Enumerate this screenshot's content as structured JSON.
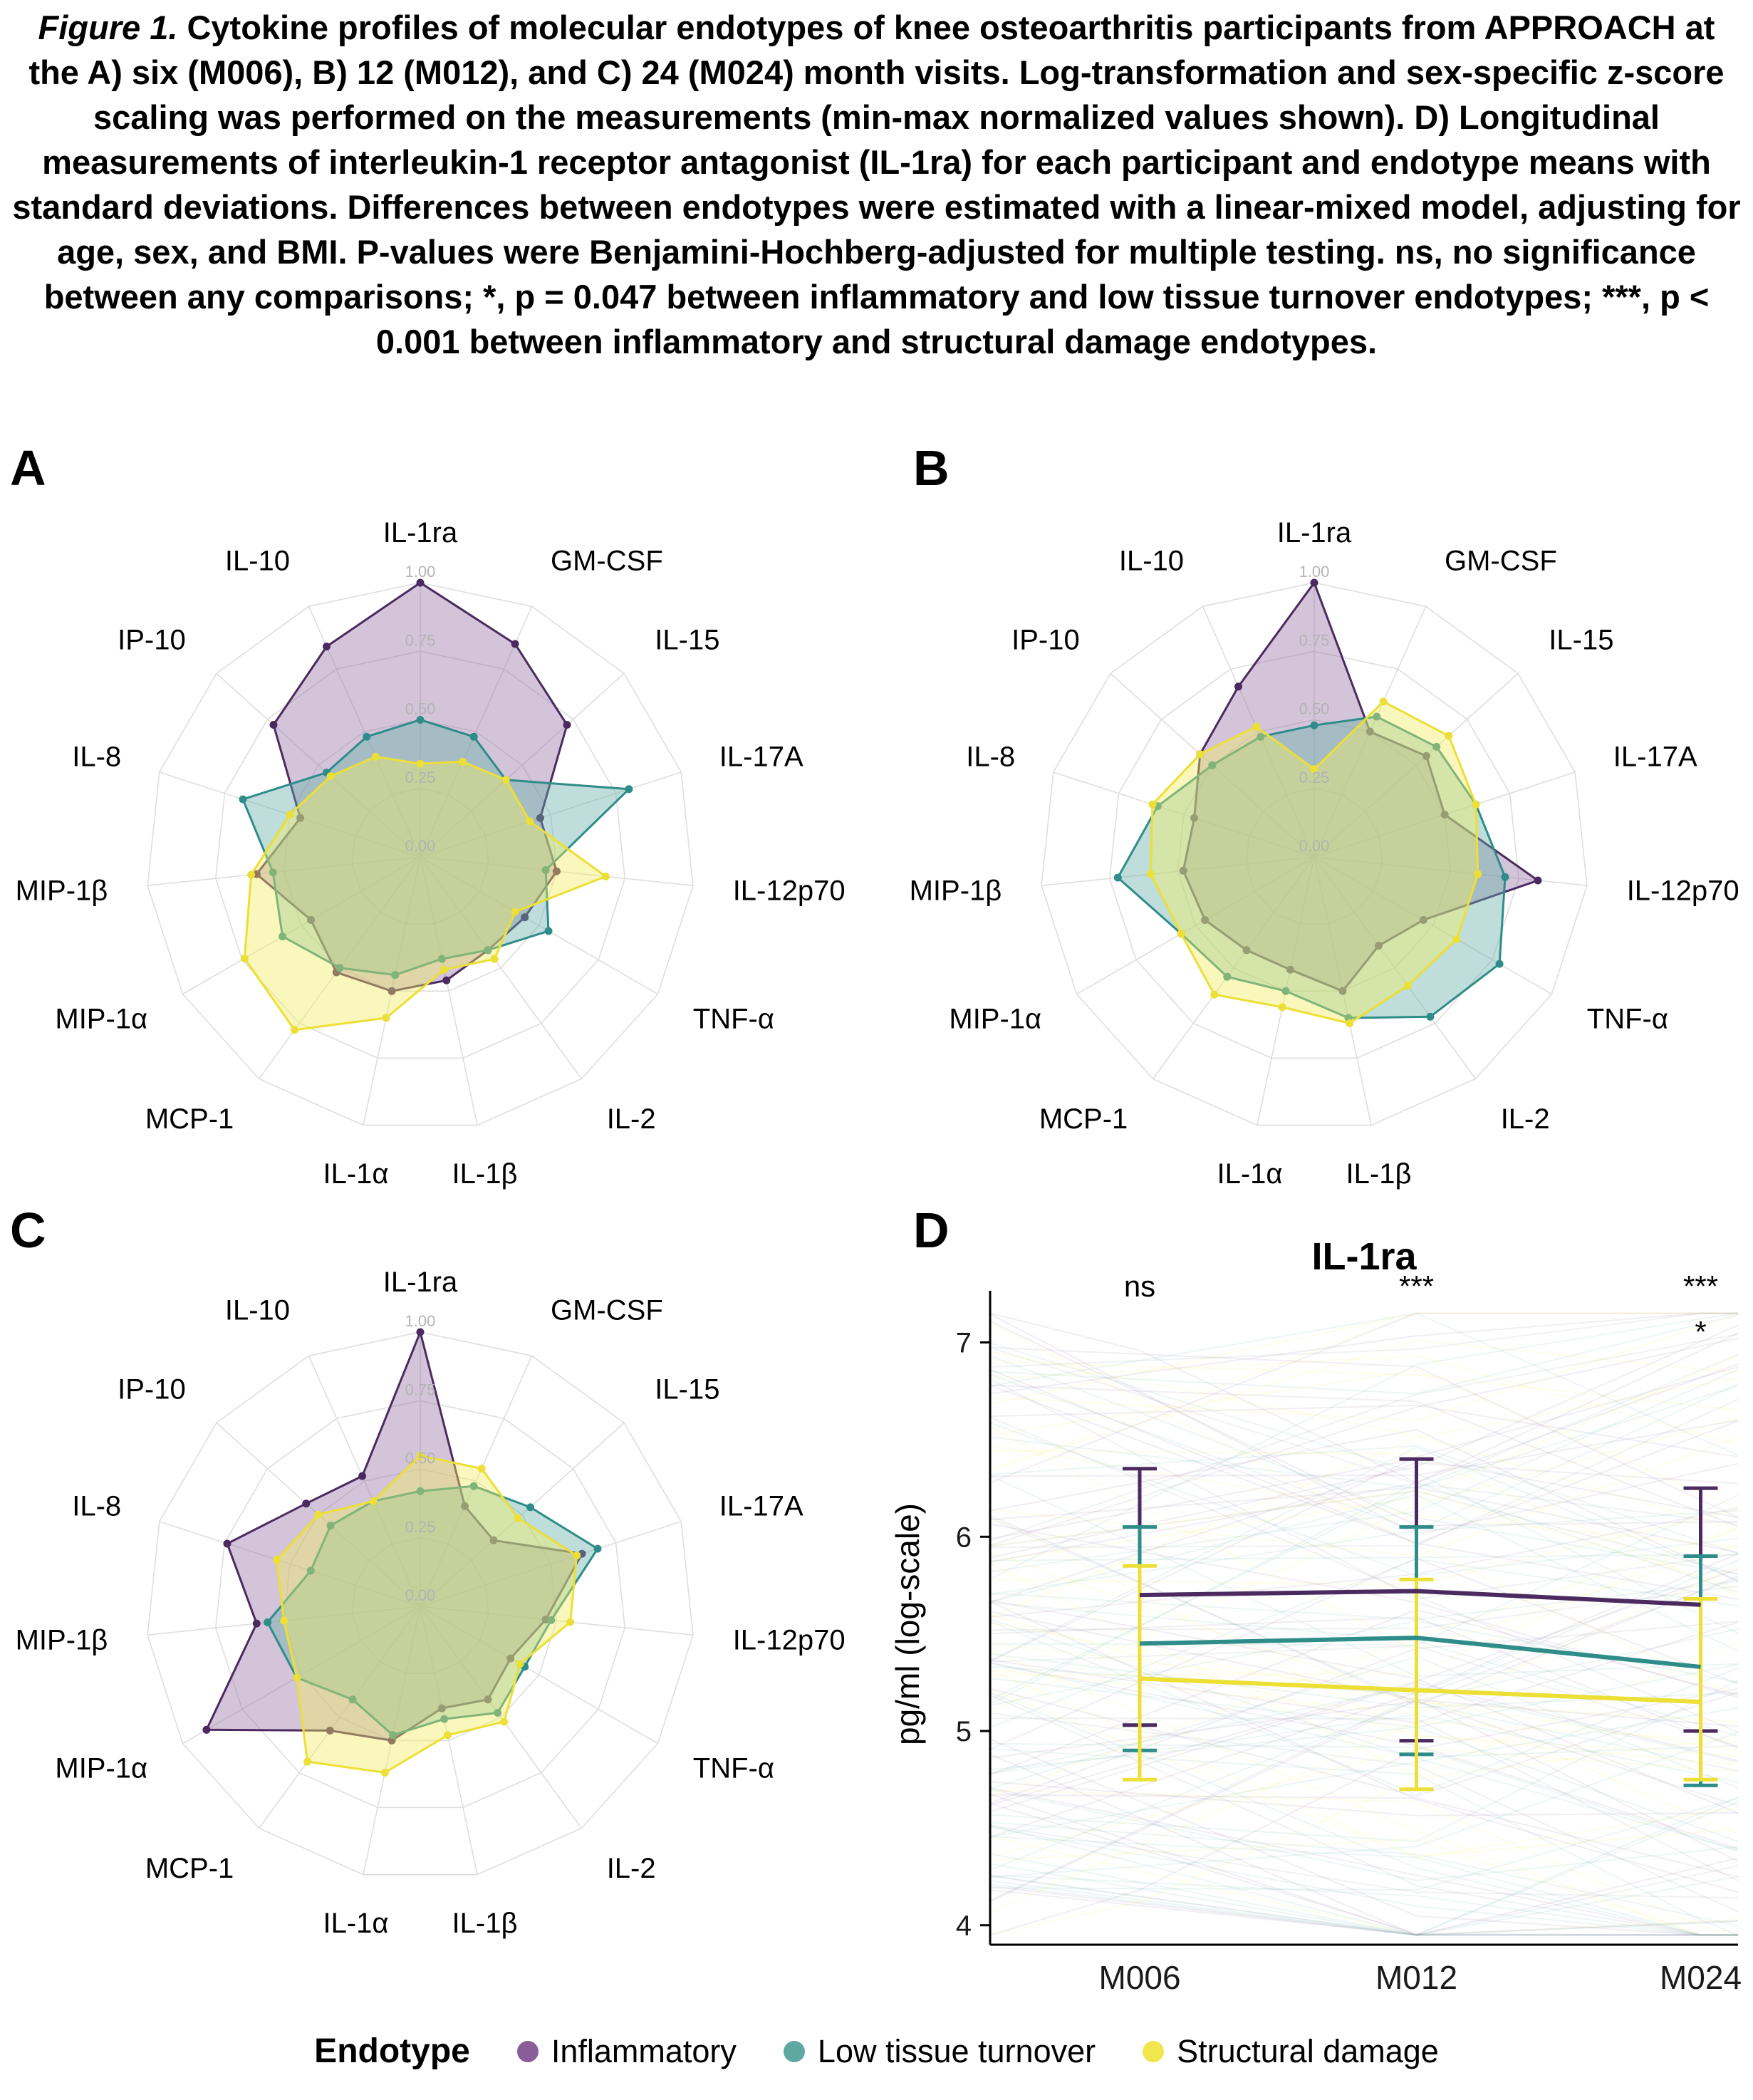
{
  "caption": {
    "figure_label": "Figure 1.",
    "text": " Cytokine profiles of molecular endotypes of knee osteoarthritis participants from APPROACH at the A) six (M006), B) 12 (M012), and C) 24 (M024) month visits. Log-transformation and sex-specific z-score scaling was performed on the measurements (min-max normalized values shown). D) Longitudinal measurements of interleukin-1 receptor antagonist (IL-1ra) for each participant and endotype means with standard deviations. Differences between endotypes were estimated with a linear-mixed model, adjusting for age, sex, and BMI. P-values were Benjamini-Hochberg-adjusted for multiple testing. ns, no significance between any comparisons; *, p = 0.047 between inflammatory and low tissue turnover endotypes;  ***, p < 0.001 between inflammatory and structural damage endotypes."
  },
  "panels": {
    "a": "A",
    "b": "B",
    "c": "C",
    "d": "D"
  },
  "colors": {
    "inflammatory": {
      "stroke": "#4b2a60",
      "fill": "#9672a8"
    },
    "low_tissue_turnover": {
      "stroke": "#2e8c89",
      "fill": "#67b1aa"
    },
    "structural_damage": {
      "stroke": "#ecdf35",
      "fill": "#f3ec62"
    }
  },
  "legend": {
    "title": "Endotype",
    "items": [
      {
        "label": "Inflammatory",
        "color": "#8a5d99"
      },
      {
        "label": "Low tissue turnover",
        "color": "#5fa8a2"
      },
      {
        "label": "Structural damage",
        "color": "#f2e64e"
      }
    ]
  },
  "chart_data": [
    {
      "type": "radar",
      "panel": "A",
      "visit": "M006",
      "axes": [
        "IL-1ra",
        "GM-CSF",
        "IL-15",
        "IL-17A",
        "IL-12p70",
        "TNF-α",
        "IL-2",
        "IL-1β",
        "IL-1α",
        "MCP-1",
        "MIP-1α",
        "MIP-1β",
        "IL-8",
        "IP-10",
        "IL-10"
      ],
      "radial_ticks": [
        "0.00",
        "0.25",
        "0.50",
        "0.75",
        "1.00"
      ],
      "range": [
        0,
        1
      ],
      "series": [
        {
          "key": "inflammatory",
          "name": "Inflammatory",
          "values": [
            1.0,
            0.85,
            0.72,
            0.46,
            0.5,
            0.44,
            0.42,
            0.46,
            0.5,
            0.52,
            0.46,
            0.6,
            0.46,
            0.72,
            0.84
          ]
        },
        {
          "key": "low_tissue_turnover",
          "name": "Low tissue turnover",
          "values": [
            0.5,
            0.48,
            0.42,
            0.8,
            0.46,
            0.54,
            0.42,
            0.38,
            0.44,
            0.5,
            0.58,
            0.54,
            0.68,
            0.46,
            0.48
          ]
        },
        {
          "key": "structural_damage",
          "name": "Structural damage",
          "values": [
            0.34,
            0.38,
            0.42,
            0.42,
            0.68,
            0.4,
            0.46,
            0.42,
            0.6,
            0.78,
            0.74,
            0.62,
            0.5,
            0.44,
            0.4
          ]
        }
      ]
    },
    {
      "type": "radar",
      "panel": "B",
      "visit": "M012",
      "axes": [
        "IL-1ra",
        "GM-CSF",
        "IL-15",
        "IL-17A",
        "IL-12p70",
        "TNF-α",
        "IL-2",
        "IL-1β",
        "IL-1α",
        "MCP-1",
        "MIP-1α",
        "MIP-1β",
        "IL-8",
        "IP-10",
        "IL-10"
      ],
      "radial_ticks": [
        "0.00",
        "0.25",
        "0.50",
        "0.75",
        "1.00"
      ],
      "range": [
        0,
        1
      ],
      "series": [
        {
          "key": "inflammatory",
          "name": "Inflammatory",
          "values": [
            1.0,
            0.5,
            0.55,
            0.5,
            0.82,
            0.46,
            0.4,
            0.5,
            0.42,
            0.42,
            0.46,
            0.48,
            0.46,
            0.56,
            0.68
          ]
        },
        {
          "key": "low_tissue_turnover",
          "name": "Low tissue turnover",
          "values": [
            0.48,
            0.56,
            0.6,
            0.62,
            0.7,
            0.78,
            0.72,
            0.6,
            0.5,
            0.54,
            0.56,
            0.72,
            0.6,
            0.5,
            0.48
          ]
        },
        {
          "key": "structural_damage",
          "name": "Structural damage",
          "values": [
            0.32,
            0.62,
            0.66,
            0.62,
            0.6,
            0.6,
            0.58,
            0.62,
            0.56,
            0.62,
            0.56,
            0.6,
            0.62,
            0.56,
            0.52
          ]
        }
      ]
    },
    {
      "type": "radar",
      "panel": "C",
      "visit": "M024",
      "axes": [
        "IL-1ra",
        "GM-CSF",
        "IL-15",
        "IL-17A",
        "IL-12p70",
        "TNF-α",
        "IL-2",
        "IL-1β",
        "IL-1α",
        "MCP-1",
        "MIP-1α",
        "MIP-1β",
        "IL-8",
        "IP-10",
        "IL-10"
      ],
      "radial_ticks": [
        "0.00",
        "0.25",
        "0.50",
        "0.75",
        "1.00"
      ],
      "range": [
        0,
        1
      ],
      "series": [
        {
          "key": "inflammatory",
          "name": "Inflammatory",
          "values": [
            1.0,
            0.4,
            0.36,
            0.62,
            0.46,
            0.38,
            0.42,
            0.38,
            0.5,
            0.56,
            0.9,
            0.6,
            0.74,
            0.56,
            0.52
          ]
        },
        {
          "key": "low_tissue_turnover",
          "name": "Low tissue turnover",
          "values": [
            0.42,
            0.48,
            0.54,
            0.68,
            0.48,
            0.44,
            0.48,
            0.42,
            0.48,
            0.42,
            0.52,
            0.56,
            0.42,
            0.44,
            0.42
          ]
        },
        {
          "key": "structural_damage",
          "name": "Structural damage",
          "values": [
            0.55,
            0.55,
            0.48,
            0.6,
            0.55,
            0.42,
            0.52,
            0.48,
            0.62,
            0.7,
            0.52,
            0.5,
            0.55,
            0.5,
            0.42
          ]
        }
      ]
    },
    {
      "type": "line",
      "panel": "D",
      "title": "IL-1ra",
      "ylabel": "pg/ml (log-scale)",
      "ylim": [
        3.9,
        7.2
      ],
      "yticks": [
        4,
        5,
        6,
        7
      ],
      "x": [
        "M006",
        "M012",
        "M024"
      ],
      "shows_individual_trajectories": true,
      "significance": [
        {
          "visit": "M006",
          "labels": [
            "ns"
          ]
        },
        {
          "visit": "M012",
          "labels": [
            "***"
          ]
        },
        {
          "visit": "M024",
          "labels": [
            "***",
            "*"
          ]
        }
      ],
      "series": [
        {
          "key": "inflammatory",
          "name": "Inflammatory",
          "means": [
            5.7,
            5.72,
            5.65
          ],
          "upper": [
            6.35,
            6.4,
            6.25
          ],
          "lower": [
            5.03,
            4.95,
            5.0
          ]
        },
        {
          "key": "low_tissue_turnover",
          "name": "Low tissue turnover",
          "means": [
            5.45,
            5.48,
            5.33
          ],
          "upper": [
            6.05,
            6.05,
            5.9
          ],
          "lower": [
            4.9,
            4.88,
            4.72
          ]
        },
        {
          "key": "structural_damage",
          "name": "Structural damage",
          "means": [
            5.27,
            5.21,
            5.15
          ],
          "upper": [
            5.85,
            5.78,
            5.68
          ],
          "lower": [
            4.75,
            4.7,
            4.75
          ]
        }
      ]
    }
  ]
}
